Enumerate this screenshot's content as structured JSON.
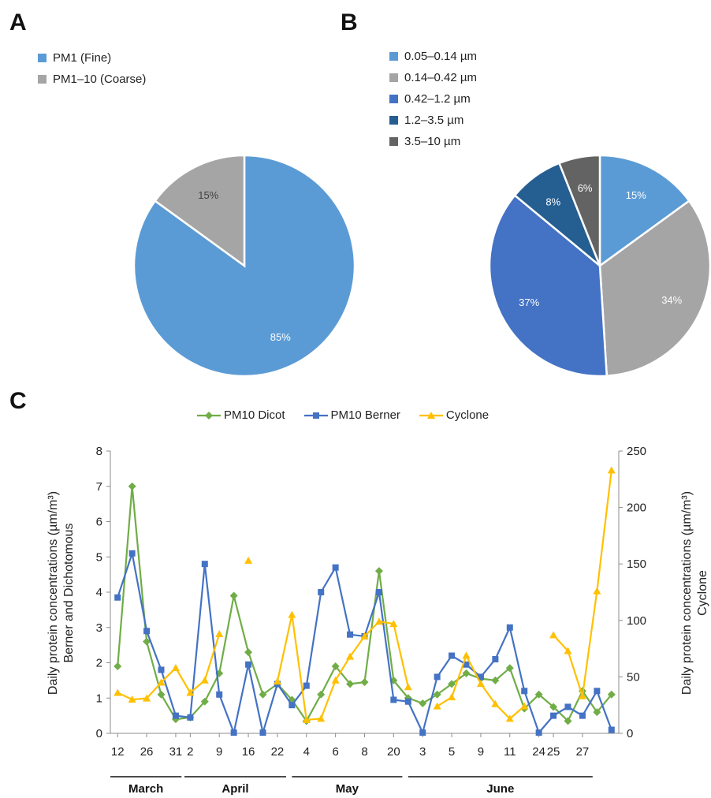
{
  "panels": {
    "a": "A",
    "b": "B",
    "c": "C"
  },
  "chart_data": [
    {
      "type": "pie",
      "panel": "A",
      "labels": [
        "PM1 (Fine)",
        "PM1–10 (Coarse)"
      ],
      "values": [
        85,
        15
      ],
      "value_labels": [
        "85%",
        "15%"
      ],
      "colors": [
        "#5b9bd5",
        "#a5a5a5"
      ],
      "label_colors": [
        "#ffffff",
        "#404040"
      ],
      "legend": "top-left"
    },
    {
      "type": "pie",
      "panel": "B",
      "labels": [
        "0.05–0.14 µm",
        "0.14–0.42 µm",
        "0.42–1.2 µm",
        "1.2–3.5 µm",
        "3.5–10 µm"
      ],
      "values": [
        15,
        34,
        37,
        8,
        6
      ],
      "value_labels": [
        "15%",
        "34%",
        "37%",
        "8%",
        "6%"
      ],
      "colors": [
        "#5b9bd5",
        "#a5a5a5",
        "#4472c4",
        "#255e91",
        "#636363"
      ],
      "label_colors": [
        "#ffffff",
        "#ffffff",
        "#ffffff",
        "#ffffff",
        "#ffffff"
      ],
      "legend": "top-left"
    },
    {
      "type": "line",
      "panel": "C",
      "ylabel_left": [
        "Daily protein concentrations (µm/m³)",
        "Berner and Dichotomous"
      ],
      "ylabel_right": [
        "Daily protein concentrations (µm/m³)",
        "Cyclone"
      ],
      "ylim_left": [
        0,
        8
      ],
      "yticks_left": [
        "0",
        "1",
        "2",
        "3",
        "4",
        "5",
        "6",
        "7",
        "8"
      ],
      "ylim_right": [
        0,
        250
      ],
      "yticks_right": [
        "0",
        "50",
        "100",
        "150",
        "200",
        "250"
      ],
      "x_ticks": [
        {
          "label": "12",
          "i": 0
        },
        {
          "label": "26",
          "i": 2
        },
        {
          "label": "31",
          "i": 4
        },
        {
          "label": "2",
          "i": 5
        },
        {
          "label": "9",
          "i": 7
        },
        {
          "label": "16",
          "i": 9
        },
        {
          "label": "22",
          "i": 11
        },
        {
          "label": "4",
          "i": 13
        },
        {
          "label": "6",
          "i": 15
        },
        {
          "label": "8",
          "i": 17
        },
        {
          "label": "20",
          "i": 19
        },
        {
          "label": "3",
          "i": 21
        },
        {
          "label": "5",
          "i": 23
        },
        {
          "label": "9",
          "i": 25
        },
        {
          "label": "11",
          "i": 27
        },
        {
          "label": "24",
          "i": 29
        },
        {
          "label": "25",
          "i": 30
        },
        {
          "label": "27",
          "i": 32
        }
      ],
      "months": [
        {
          "label": "March",
          "from": -0.5,
          "to": 4.4
        },
        {
          "label": "April",
          "from": 4.6,
          "to": 11.6
        },
        {
          "label": "May",
          "from": 12.0,
          "to": 19.6
        },
        {
          "label": "June",
          "from": 20.0,
          "to": 32.7
        }
      ],
      "legend": "top",
      "series": [
        {
          "name": "PM10 Dicot",
          "axis": "left",
          "color": "#70ad47",
          "marker": "diamond",
          "values": [
            1.9,
            7.0,
            2.6,
            1.1,
            0.4,
            0.45,
            0.9,
            1.7,
            3.9,
            2.3,
            1.1,
            1.4,
            0.95,
            0.35,
            1.1,
            1.9,
            1.4,
            1.45,
            4.6,
            1.5,
            1.0,
            0.85,
            1.1,
            1.4,
            1.7,
            1.55,
            1.5,
            1.85,
            0.7,
            1.1,
            0.75,
            0.35,
            1.2,
            0.6,
            1.1
          ]
        },
        {
          "name": "PM10 Berner",
          "axis": "left",
          "color": "#4472c4",
          "marker": "square",
          "values": [
            3.85,
            5.1,
            2.9,
            1.8,
            0.5,
            0.45,
            4.8,
            1.1,
            0.02,
            1.95,
            0.02,
            1.4,
            0.8,
            1.35,
            4.0,
            4.7,
            2.8,
            2.75,
            4.0,
            0.95,
            0.9,
            0.02,
            1.6,
            2.2,
            1.95,
            1.6,
            2.1,
            3.0,
            1.2,
            0.02,
            0.5,
            0.75,
            0.5,
            1.2,
            0.1
          ]
        },
        {
          "name": "Cyclone",
          "axis": "right",
          "color": "#ffc000",
          "marker": "triangle",
          "values": [
            36,
            30,
            31,
            45,
            58,
            36,
            47,
            88,
            null,
            153,
            null,
            46,
            105,
            12,
            13,
            47,
            68,
            86,
            99,
            97,
            41,
            null,
            24,
            32,
            69,
            44,
            26,
            13,
            24,
            null,
            87,
            73,
            33,
            126,
            233
          ]
        }
      ]
    }
  ]
}
